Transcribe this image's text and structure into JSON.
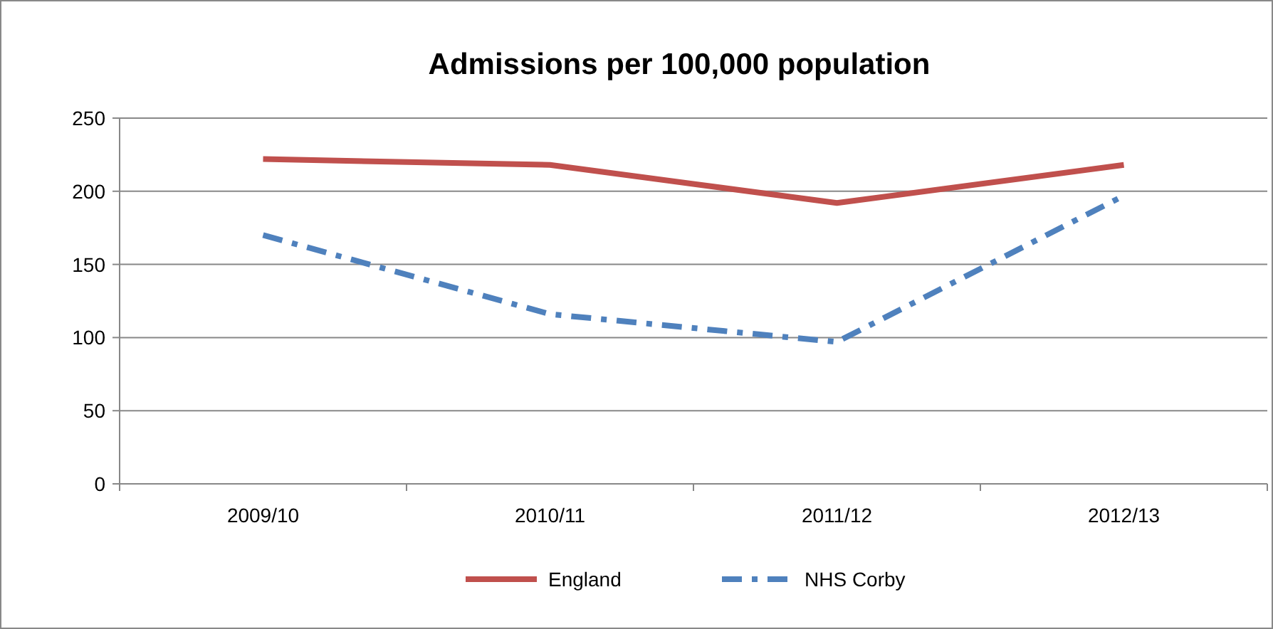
{
  "chart_data": {
    "type": "line",
    "title": "Admissions per 100,000 population",
    "categories": [
      "2009/10",
      "2010/11",
      "2011/12",
      "2012/13"
    ],
    "series": [
      {
        "name": "England",
        "color": "#c0504d",
        "values": [
          222,
          218,
          192,
          218
        ],
        "line_style": "solid"
      },
      {
        "name": "NHS Corby",
        "color": "#4f81bd",
        "values": [
          170,
          116,
          97,
          197
        ],
        "line_style": "dashed"
      }
    ],
    "ylim": [
      0,
      250
    ],
    "yticks": [
      0,
      50,
      100,
      150,
      200,
      250
    ],
    "grid": "y",
    "legend": "bottom",
    "marker": "none"
  }
}
